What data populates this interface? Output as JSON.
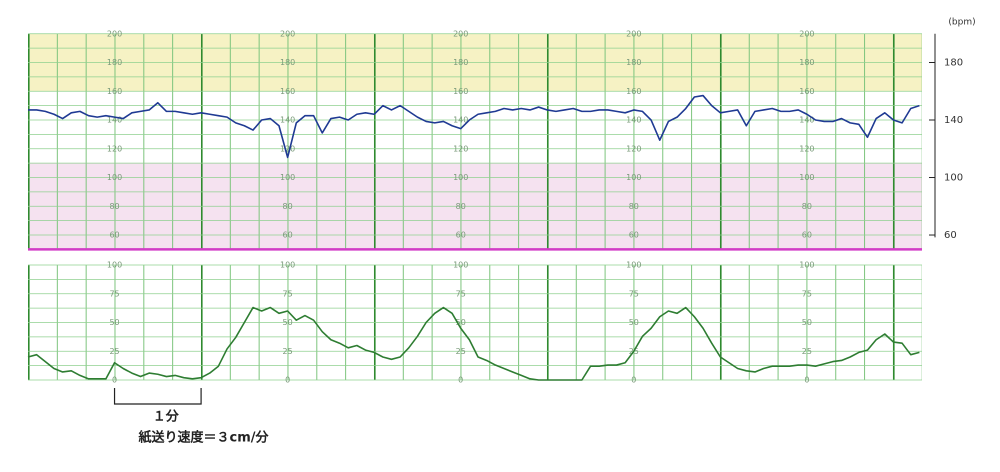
{
  "chart_data": [
    {
      "type": "line",
      "y_axis_label": "(bpm)",
      "xlim": [
        0,
        10.33
      ],
      "ylim": [
        50,
        200
      ],
      "yticks": [
        60,
        100,
        140,
        180
      ],
      "grid_labels": [
        200,
        180,
        160,
        140,
        120,
        100,
        80,
        60
      ],
      "grid_label_x": [
        1,
        3,
        5,
        7,
        9
      ],
      "ygrid": [
        60,
        70,
        80,
        90,
        100,
        110,
        120,
        130,
        140,
        150,
        160,
        170,
        180,
        190,
        200
      ],
      "bands": [
        {
          "range": [
            160,
            200
          ],
          "color": "#f6f2c4"
        },
        {
          "range": [
            50,
            110
          ],
          "color": "#f5e2f0"
        }
      ],
      "bottom_line_color": "#d23cc6",
      "x": [
        0,
        0.1,
        0.2,
        0.3,
        0.4,
        0.5,
        0.6,
        0.7,
        0.8,
        0.9,
        1,
        1.1,
        1.2,
        1.3,
        1.4,
        1.5,
        1.6,
        1.7,
        1.8,
        1.9,
        2,
        2.1,
        2.2,
        2.3,
        2.4,
        2.5,
        2.6,
        2.7,
        2.8,
        2.9,
        3,
        3.1,
        3.2,
        3.3,
        3.4,
        3.5,
        3.6,
        3.7,
        3.8,
        3.9,
        4,
        4.1,
        4.2,
        4.3,
        4.4,
        4.5,
        4.6,
        4.7,
        4.8,
        4.9,
        5,
        5.1,
        5.2,
        5.3,
        5.4,
        5.5,
        5.6,
        5.7,
        5.8,
        5.9,
        6,
        6.1,
        6.2,
        6.3,
        6.4,
        6.5,
        6.6,
        6.7,
        6.8,
        6.9,
        7,
        7.1,
        7.2,
        7.3,
        7.4,
        7.5,
        7.6,
        7.7,
        7.8,
        7.9,
        8,
        8.1,
        8.2,
        8.3,
        8.4,
        8.5,
        8.6,
        8.7,
        8.8,
        8.9,
        9,
        9.1,
        9.2,
        9.3,
        9.4,
        9.5,
        9.6,
        9.7,
        9.8,
        9.9,
        10,
        10.1,
        10.2,
        10.3
      ],
      "series": [
        {
          "color": "#1f3a93",
          "values": [
            147,
            147,
            146,
            144,
            141,
            145,
            146,
            143,
            142,
            143,
            142,
            141,
            145,
            146,
            147,
            152,
            146,
            146,
            145,
            144,
            145,
            144,
            143,
            142,
            138,
            136,
            133,
            140,
            141,
            136,
            114,
            138,
            143,
            143,
            131,
            141,
            142,
            140,
            144,
            145,
            144,
            150,
            147,
            150,
            146,
            142,
            139,
            138,
            139,
            136,
            134,
            140,
            144,
            145,
            146,
            148,
            147,
            148,
            147,
            149,
            147,
            146,
            147,
            148,
            146,
            146,
            147,
            147,
            146,
            145,
            147,
            146,
            140,
            126,
            139,
            142,
            148,
            156,
            157,
            150,
            145,
            146,
            147,
            136,
            146,
            147,
            148,
            146,
            146,
            147,
            144,
            140,
            139,
            139,
            141,
            138,
            137,
            128,
            141,
            145,
            140,
            138,
            148,
            150
          ]
        }
      ]
    },
    {
      "type": "line",
      "xlim": [
        0,
        10.33
      ],
      "ylim": [
        0,
        100
      ],
      "grid_labels": [
        100,
        75,
        50,
        25,
        0
      ],
      "grid_label_x": [
        1,
        3,
        5,
        7,
        9
      ],
      "ygrid": [
        0,
        12.5,
        25,
        37.5,
        50,
        62.5,
        75,
        87.5,
        100
      ],
      "x": [
        0,
        0.1,
        0.2,
        0.3,
        0.4,
        0.5,
        0.6,
        0.7,
        0.8,
        0.9,
        1,
        1.1,
        1.2,
        1.3,
        1.4,
        1.5,
        1.6,
        1.7,
        1.8,
        1.9,
        2,
        2.1,
        2.2,
        2.3,
        2.4,
        2.5,
        2.6,
        2.7,
        2.8,
        2.9,
        3,
        3.1,
        3.2,
        3.3,
        3.4,
        3.5,
        3.6,
        3.7,
        3.8,
        3.9,
        4,
        4.1,
        4.2,
        4.3,
        4.4,
        4.5,
        4.6,
        4.7,
        4.8,
        4.9,
        5,
        5.1,
        5.2,
        5.3,
        5.4,
        5.5,
        5.6,
        5.7,
        5.8,
        5.9,
        6,
        6.1,
        6.2,
        6.3,
        6.4,
        6.5,
        6.6,
        6.7,
        6.8,
        6.9,
        7,
        7.1,
        7.2,
        7.3,
        7.4,
        7.5,
        7.6,
        7.7,
        7.8,
        7.9,
        8,
        8.1,
        8.2,
        8.3,
        8.4,
        8.5,
        8.6,
        8.7,
        8.8,
        8.9,
        9,
        9.1,
        9.2,
        9.3,
        9.4,
        9.5,
        9.6,
        9.7,
        9.8,
        9.9,
        10,
        10.1,
        10.2,
        10.3
      ],
      "series": [
        {
          "color": "#2e7d32",
          "values": [
            20,
            22,
            16,
            10,
            7,
            8,
            4,
            1,
            1,
            1,
            15,
            10,
            6,
            3,
            6,
            5,
            3,
            4,
            2,
            1,
            2,
            6,
            12,
            27,
            37,
            50,
            63,
            60,
            63,
            58,
            60,
            52,
            56,
            52,
            42,
            35,
            32,
            28,
            30,
            26,
            24,
            20,
            18,
            20,
            28,
            38,
            50,
            58,
            63,
            58,
            45,
            35,
            20,
            17,
            13,
            10,
            7,
            4,
            1,
            0,
            0,
            0,
            0,
            0,
            0,
            12,
            12,
            13,
            13,
            15,
            25,
            38,
            45,
            55,
            60,
            58,
            63,
            55,
            45,
            32,
            20,
            15,
            10,
            8,
            7,
            10,
            12,
            12,
            12,
            13,
            13,
            12,
            14,
            16,
            17,
            20,
            24,
            26,
            35,
            40,
            33,
            32,
            22,
            24
          ]
        }
      ],
      "scale_bar": {
        "label": "１分",
        "x": [
          1,
          2
        ],
        "caption": "紙送り速度＝３cm/分"
      }
    }
  ]
}
